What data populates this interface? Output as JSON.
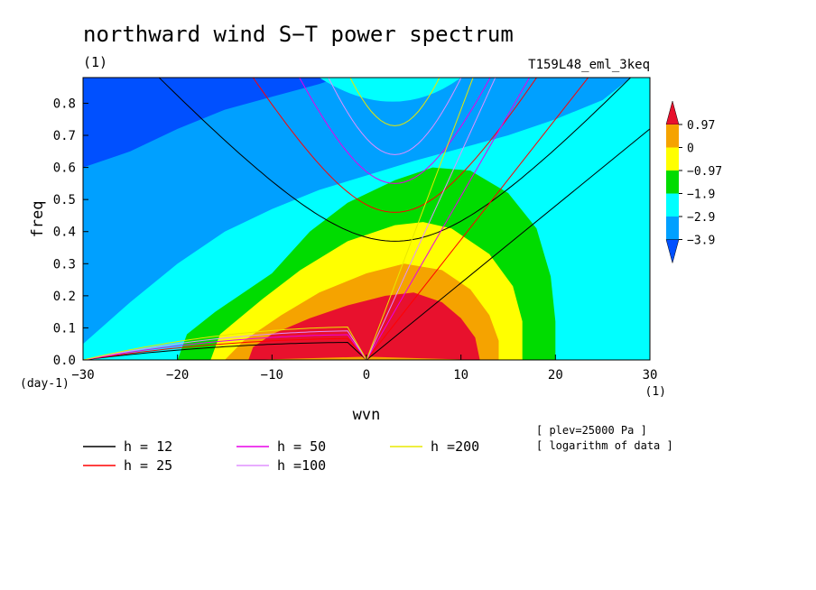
{
  "chart_data": {
    "type": "heatmap",
    "title": "northward wind S−T power spectrum",
    "subtitle_left": "(1)",
    "subtitle_right": "T159L48_eml_3keq",
    "xlabel": "wvn",
    "ylabel": "freq",
    "x_unit_label": "(1)",
    "y_unit_label": "(day-1)",
    "xlim": [
      -30,
      30
    ],
    "ylim": [
      0,
      0.88
    ],
    "x_ticks": [
      -30,
      -20,
      -10,
      0,
      10,
      20,
      30
    ],
    "x_tick_labels": [
      "−30",
      "−20",
      "−10",
      "0",
      "10",
      "20",
      "30"
    ],
    "y_ticks": [
      0,
      0.1,
      0.2,
      0.3,
      0.4,
      0.5,
      0.6,
      0.7,
      0.8
    ],
    "y_tick_labels": [
      "0.0",
      "0.1",
      "0.2",
      "0.3",
      "0.4",
      "0.5",
      "0.6",
      "0.7",
      "0.8"
    ],
    "notes": [
      "[ plev=25000 Pa ]",
      "[ logarithm of data ]"
    ],
    "colorbar": {
      "labels": [
        "0.97",
        "0",
        "−0.97",
        "−1.9",
        "−2.9",
        "−3.9"
      ],
      "levels": [
        0.97,
        0,
        -0.97,
        -1.9,
        -2.9,
        -3.9
      ],
      "colors": [
        "#e8112d",
        "#f5a300",
        "#ffff00",
        "#00dc00",
        "#00ffff",
        "#00a0ff",
        "#0050ff"
      ]
    },
    "region_levels": [
      {
        "level": -3.9,
        "color": "#00a0ff"
      },
      {
        "level": -2.9,
        "color": "#00ffff"
      },
      {
        "level": -1.9,
        "color": "#00dc00"
      },
      {
        "level": -0.97,
        "color": "#ffff00"
      },
      {
        "level": 0,
        "color": "#f5a300"
      },
      {
        "level": 0.97,
        "color": "#e8112d"
      }
    ],
    "top_left_region_color": "#0050ff",
    "dispersion_curves": [
      {
        "label": "h = 12",
        "color": "#000000"
      },
      {
        "label": "h = 25",
        "color": "#ff0000"
      },
      {
        "label": "h = 50",
        "color": "#e800e8"
      },
      {
        "label": "h =100",
        "color": "#e090ff"
      },
      {
        "label": "h =200",
        "color": "#e8e800"
      }
    ]
  }
}
